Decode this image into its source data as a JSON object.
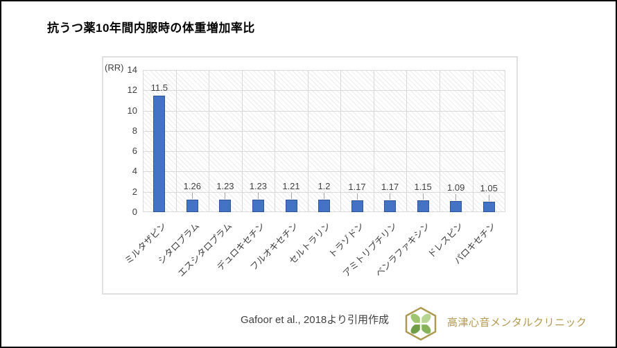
{
  "slide": {
    "title": "抗うつ薬10年間内服時の体重増加率比",
    "citation": "Gafoor et al., 2018より引用作成",
    "clinic_name": "高津心音メンタルクリニック"
  },
  "chart_data": {
    "type": "bar",
    "title": "抗うつ薬10年間内服時の体重増加率比",
    "unit_label": "(RR)",
    "categories": [
      "ミルタザピン",
      "シタロプラム",
      "エスシタロプラム",
      "デュロキセチン",
      "フルオキセチン",
      "セルトラリン",
      "トラゾドン",
      "アミトリプチリン",
      "ベンラファキシン",
      "ドレスピン",
      "パロキセチン"
    ],
    "values": [
      11.5,
      1.26,
      1.23,
      1.23,
      1.21,
      1.2,
      1.17,
      1.17,
      1.15,
      1.09,
      1.05
    ],
    "xlabel": "",
    "ylabel": "(RR)",
    "ylim": [
      0,
      14
    ],
    "yticks": [
      0,
      2,
      4,
      6,
      8,
      10,
      12,
      14
    ],
    "grid": true,
    "legend": "none",
    "bar_color": "#4472c4",
    "bar_border_color": "#2f5597",
    "plot_hatched": true
  },
  "colors": {
    "axis_text": "#404040",
    "gridline": "#d9d9d9",
    "chart_border": "#e0e0e0",
    "title_text": "#000000",
    "citation_text": "#404040",
    "logo_gold": "#ac9a50",
    "logo_green_light": "#9fc56f",
    "logo_green_dark": "#6f9d45"
  }
}
